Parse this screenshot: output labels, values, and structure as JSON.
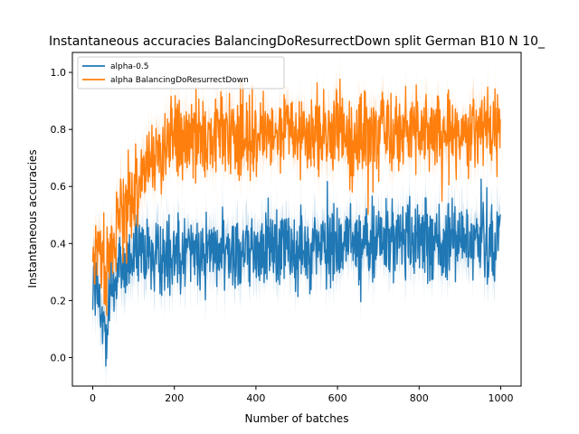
{
  "chart_data": {
    "type": "line",
    "title": "Instantaneous accuracies BalancingDoResurrectDown split German B10 N 10_",
    "xlabel": "Number of batches",
    "ylabel": "Instantaneous accuracies",
    "xlim": [
      -50,
      1050
    ],
    "ylim": [
      -0.1,
      1.07
    ],
    "x_ticks": [
      0,
      200,
      400,
      600,
      800,
      1000
    ],
    "x_tick_labels": [
      "0",
      "200",
      "400",
      "600",
      "800",
      "1000"
    ],
    "y_ticks": [
      0.0,
      0.2,
      0.4,
      0.6,
      0.8,
      1.0
    ],
    "y_tick_labels": [
      "0.0",
      "0.2",
      "0.4",
      "0.6",
      "0.8",
      "1.0"
    ],
    "grid": false,
    "legend_position": "top-left",
    "n_points": 1000,
    "series": [
      {
        "name": "alpha-0.5",
        "color": "#1f77b4",
        "band_color": "#aec7e8",
        "keypoints": [
          {
            "x": 0,
            "y": 0.3
          },
          {
            "x": 10,
            "y": 0.22
          },
          {
            "x": 20,
            "y": 0.15
          },
          {
            "x": 28,
            "y": 0.1
          },
          {
            "x": 40,
            "y": 0.22
          },
          {
            "x": 60,
            "y": 0.3
          },
          {
            "x": 100,
            "y": 0.35
          },
          {
            "x": 200,
            "y": 0.37
          },
          {
            "x": 400,
            "y": 0.38
          },
          {
            "x": 600,
            "y": 0.4
          },
          {
            "x": 800,
            "y": 0.41
          },
          {
            "x": 1000,
            "y": 0.42
          }
        ],
        "noise_amplitude": 0.09,
        "band_halfwidth": 0.07
      },
      {
        "name": "alpha BalancingDoResurrectDown",
        "color": "#ff7f0e",
        "band_color": "#ffbb78",
        "keypoints": [
          {
            "x": 0,
            "y": 0.33
          },
          {
            "x": 15,
            "y": 0.38
          },
          {
            "x": 30,
            "y": 0.3
          },
          {
            "x": 60,
            "y": 0.45
          },
          {
            "x": 100,
            "y": 0.58
          },
          {
            "x": 150,
            "y": 0.7
          },
          {
            "x": 200,
            "y": 0.75
          },
          {
            "x": 300,
            "y": 0.77
          },
          {
            "x": 400,
            "y": 0.78
          },
          {
            "x": 600,
            "y": 0.78
          },
          {
            "x": 800,
            "y": 0.79
          },
          {
            "x": 1000,
            "y": 0.79
          }
        ],
        "noise_amplitude": 0.09,
        "band_halfwidth": 0.06
      }
    ]
  }
}
